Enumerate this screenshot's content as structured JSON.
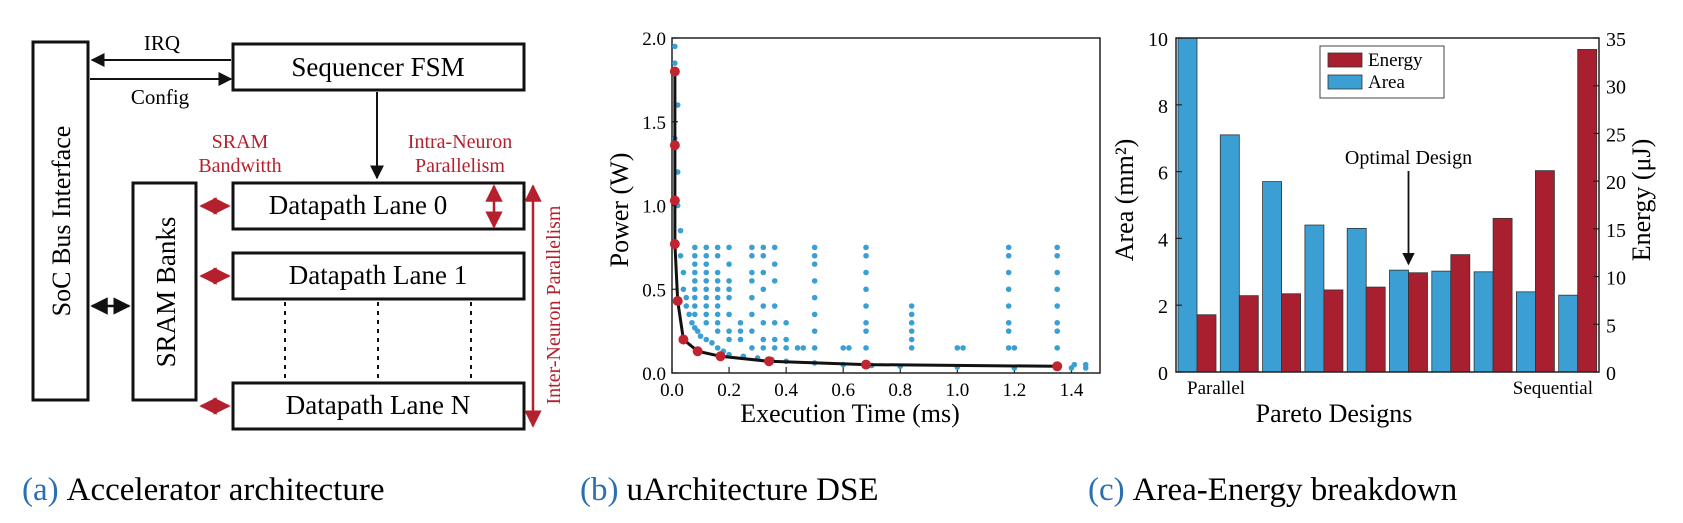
{
  "panel_a": {
    "caption_letter": "(a)",
    "caption_text": "Accelerator architecture",
    "soc_bus": "SoC Bus Interface",
    "sequencer": "Sequencer FSM",
    "irq": "IRQ",
    "config": "Config",
    "sram_banks": "SRAM Banks",
    "sram_bw_line1": "SRAM",
    "sram_bw_line2": "Bandwitth",
    "intra_line1": "Intra-Neuron",
    "intra_line2": "Parallelism",
    "inter": "Inter-Neuron Parallelism",
    "lanes": [
      "Datapath Lane 0",
      "Datapath Lane 1",
      "Datapath Lane N"
    ],
    "accent_color": "#b5202e"
  },
  "panel_b": {
    "caption_letter": "(b)",
    "caption_text": "uArchitecture DSE",
    "chart_data": {
      "type": "scatter",
      "xlabel": "Execution Time (ms)",
      "ylabel": "Power (W)",
      "xlim": [
        0,
        1.5
      ],
      "ylim": [
        0,
        2.0
      ],
      "xticks": [
        "0.0",
        "0.2",
        "0.4",
        "0.6",
        "0.8",
        "1.0",
        "1.2",
        "1.4"
      ],
      "yticks": [
        "0.0",
        "0.5",
        "1.0",
        "1.5",
        "2.0"
      ],
      "series": [
        {
          "color": "#3a9fd3",
          "points": [
            [
              0.01,
              1.95
            ],
            [
              0.01,
              1.85
            ],
            [
              0.02,
              1.6
            ],
            [
              0.01,
              1.4
            ],
            [
              0.02,
              1.2
            ],
            [
              0.02,
              1.0
            ],
            [
              0.03,
              0.85
            ],
            [
              0.03,
              0.7
            ],
            [
              0.04,
              0.6
            ],
            [
              0.04,
              0.5
            ],
            [
              0.05,
              0.45
            ],
            [
              0.05,
              0.4
            ],
            [
              0.06,
              0.35
            ],
            [
              0.07,
              0.3
            ],
            [
              0.08,
              0.27
            ],
            [
              0.09,
              0.25
            ],
            [
              0.1,
              0.22
            ],
            [
              0.12,
              0.2
            ],
            [
              0.14,
              0.18
            ],
            [
              0.16,
              0.15
            ],
            [
              0.18,
              0.13
            ],
            [
              0.2,
              0.11
            ],
            [
              0.25,
              0.1
            ],
            [
              0.3,
              0.09
            ],
            [
              0.35,
              0.08
            ],
            [
              0.4,
              0.07
            ],
            [
              0.5,
              0.06
            ],
            [
              0.6,
              0.05
            ],
            [
              0.7,
              0.045
            ],
            [
              0.8,
              0.04
            ],
            [
              1.0,
              0.035
            ],
            [
              1.2,
              0.03
            ],
            [
              1.35,
              0.03
            ],
            [
              1.4,
              0.03
            ],
            [
              1.45,
              0.03
            ],
            [
              0.08,
              0.75
            ],
            [
              0.08,
              0.7
            ],
            [
              0.08,
              0.65
            ],
            [
              0.08,
              0.6
            ],
            [
              0.08,
              0.55
            ],
            [
              0.08,
              0.5
            ],
            [
              0.08,
              0.45
            ],
            [
              0.08,
              0.4
            ],
            [
              0.08,
              0.35
            ],
            [
              0.12,
              0.75
            ],
            [
              0.12,
              0.7
            ],
            [
              0.12,
              0.65
            ],
            [
              0.12,
              0.6
            ],
            [
              0.12,
              0.55
            ],
            [
              0.12,
              0.5
            ],
            [
              0.12,
              0.45
            ],
            [
              0.12,
              0.4
            ],
            [
              0.12,
              0.35
            ],
            [
              0.12,
              0.3
            ],
            [
              0.16,
              0.75
            ],
            [
              0.16,
              0.7
            ],
            [
              0.16,
              0.6
            ],
            [
              0.16,
              0.55
            ],
            [
              0.16,
              0.5
            ],
            [
              0.16,
              0.45
            ],
            [
              0.16,
              0.4
            ],
            [
              0.16,
              0.35
            ],
            [
              0.16,
              0.3
            ],
            [
              0.16,
              0.25
            ],
            [
              0.2,
              0.75
            ],
            [
              0.2,
              0.65
            ],
            [
              0.2,
              0.55
            ],
            [
              0.2,
              0.5
            ],
            [
              0.2,
              0.45
            ],
            [
              0.2,
              0.35
            ],
            [
              0.2,
              0.25
            ],
            [
              0.2,
              0.2
            ],
            [
              0.24,
              0.3
            ],
            [
              0.24,
              0.25
            ],
            [
              0.24,
              0.2
            ],
            [
              0.28,
              0.75
            ],
            [
              0.28,
              0.7
            ],
            [
              0.28,
              0.6
            ],
            [
              0.28,
              0.55
            ],
            [
              0.28,
              0.45
            ],
            [
              0.28,
              0.35
            ],
            [
              0.28,
              0.25
            ],
            [
              0.28,
              0.15
            ],
            [
              0.32,
              0.75
            ],
            [
              0.32,
              0.7
            ],
            [
              0.32,
              0.6
            ],
            [
              0.32,
              0.5
            ],
            [
              0.32,
              0.4
            ],
            [
              0.32,
              0.3
            ],
            [
              0.32,
              0.2
            ],
            [
              0.32,
              0.15
            ],
            [
              0.36,
              0.75
            ],
            [
              0.36,
              0.65
            ],
            [
              0.36,
              0.55
            ],
            [
              0.36,
              0.4
            ],
            [
              0.36,
              0.3
            ],
            [
              0.36,
              0.2
            ],
            [
              0.36,
              0.15
            ],
            [
              0.4,
              0.3
            ],
            [
              0.4,
              0.2
            ],
            [
              0.4,
              0.15
            ],
            [
              0.44,
              0.15
            ],
            [
              0.46,
              0.15
            ],
            [
              0.5,
              0.75
            ],
            [
              0.5,
              0.7
            ],
            [
              0.5,
              0.65
            ],
            [
              0.5,
              0.55
            ],
            [
              0.5,
              0.45
            ],
            [
              0.5,
              0.35
            ],
            [
              0.5,
              0.25
            ],
            [
              0.5,
              0.15
            ],
            [
              0.6,
              0.15
            ],
            [
              0.62,
              0.15
            ],
            [
              0.68,
              0.75
            ],
            [
              0.68,
              0.7
            ],
            [
              0.68,
              0.6
            ],
            [
              0.68,
              0.5
            ],
            [
              0.68,
              0.4
            ],
            [
              0.68,
              0.3
            ],
            [
              0.68,
              0.25
            ],
            [
              0.68,
              0.15
            ],
            [
              0.84,
              0.4
            ],
            [
              0.84,
              0.35
            ],
            [
              0.84,
              0.3
            ],
            [
              0.84,
              0.25
            ],
            [
              0.84,
              0.2
            ],
            [
              0.84,
              0.15
            ],
            [
              1.0,
              0.15
            ],
            [
              1.02,
              0.15
            ],
            [
              1.18,
              0.75
            ],
            [
              1.18,
              0.7
            ],
            [
              1.18,
              0.6
            ],
            [
              1.18,
              0.5
            ],
            [
              1.18,
              0.4
            ],
            [
              1.18,
              0.3
            ],
            [
              1.18,
              0.25
            ],
            [
              1.18,
              0.15
            ],
            [
              1.2,
              0.15
            ],
            [
              1.35,
              0.75
            ],
            [
              1.35,
              0.7
            ],
            [
              1.35,
              0.6
            ],
            [
              1.35,
              0.5
            ],
            [
              1.35,
              0.4
            ],
            [
              1.35,
              0.3
            ],
            [
              1.35,
              0.25
            ],
            [
              1.35,
              0.15
            ],
            [
              1.41,
              0.05
            ],
            [
              1.45,
              0.05
            ]
          ]
        },
        {
          "color": "#c0242e",
          "points": [
            [
              0.01,
              1.8
            ],
            [
              0.01,
              1.36
            ],
            [
              0.01,
              1.03
            ],
            [
              0.01,
              0.77
            ],
            [
              0.02,
              0.43
            ],
            [
              0.04,
              0.2
            ],
            [
              0.09,
              0.13
            ],
            [
              0.17,
              0.1
            ],
            [
              0.34,
              0.07
            ],
            [
              0.68,
              0.05
            ],
            [
              1.35,
              0.04
            ]
          ]
        }
      ]
    }
  },
  "panel_c": {
    "caption_letter": "(c)",
    "caption_text": "Area-Energy breakdown",
    "chart_data": {
      "type": "bar",
      "xlabel": "Pareto Designs",
      "ylabel": "Area (mm²)",
      "y2label": "Energy (μJ)",
      "ylim": [
        0,
        10
      ],
      "y2lim": [
        0,
        35
      ],
      "yticks": [
        "0",
        "2",
        "4",
        "6",
        "8",
        "10"
      ],
      "y2ticks": [
        "0",
        "5",
        "10",
        "15",
        "20",
        "25",
        "30",
        "35"
      ],
      "left_label": "Parallel",
      "right_label": "Sequential",
      "annotation": "Optimal Design",
      "annotation_index": 5,
      "series": [
        {
          "name": "Energy",
          "axis": "right",
          "color": "#a8202f",
          "values": [
            6,
            8,
            8.2,
            8.6,
            8.9,
            10.4,
            12.3,
            16.1,
            21.1,
            33.8
          ]
        },
        {
          "name": "Area",
          "axis": "left",
          "color": "#3b9fd4",
          "values": [
            10,
            7.1,
            5.7,
            4.4,
            4.3,
            3.05,
            3.02,
            3.0,
            2.4,
            2.3
          ]
        }
      ]
    }
  }
}
